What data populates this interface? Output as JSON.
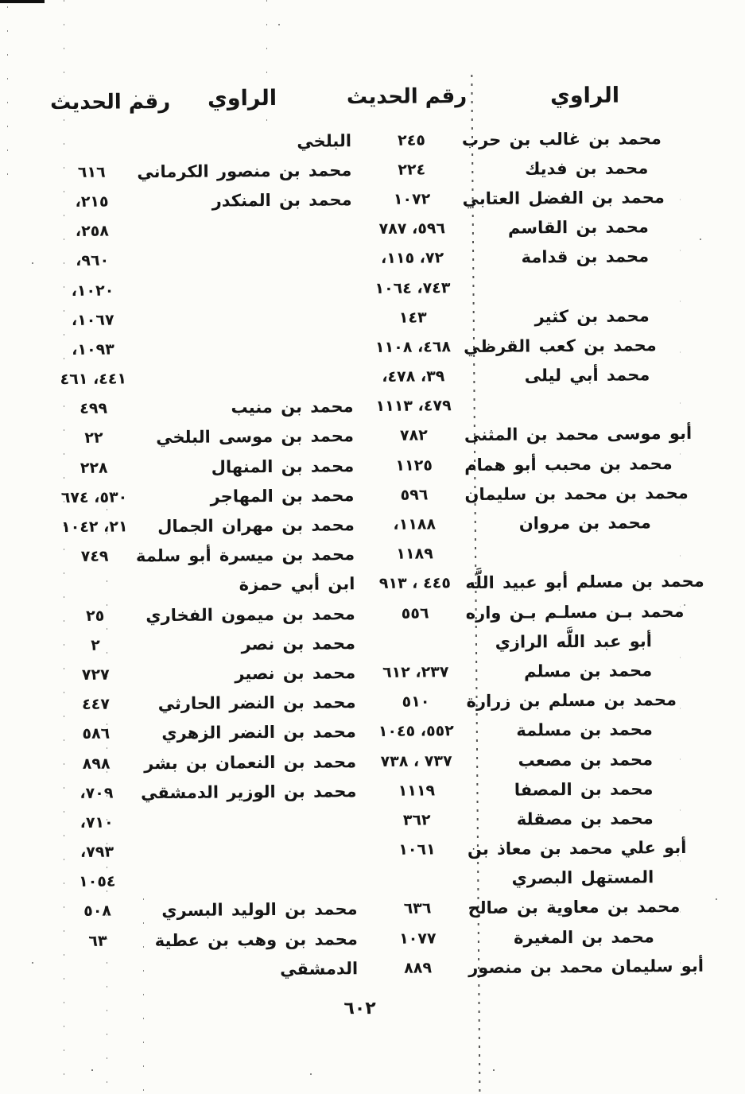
{
  "colors": {
    "ink": "#151515",
    "paper": "#fcfcf9"
  },
  "header": {
    "right": {
      "narrator_label": "الراوي",
      "number_label": "رقم الحديث"
    },
    "left": {
      "narrator_label": "الراوي",
      "number_label": "رقم الحديث"
    }
  },
  "footer": {
    "page_number": "٦٠٢"
  },
  "table": {
    "rows": [
      {
        "right_narrator": "محمد بن غالب بن حرب",
        "right_number": "٢٤٥",
        "left_narrator": "البلخي",
        "left_number": ""
      },
      {
        "right_narrator": "محمد بن فديك",
        "right_number": "٢٢٤",
        "left_narrator": "محمد بن منصور الكرماني",
        "left_number": "٦١٦"
      },
      {
        "right_narrator": "محمد بن الفضل العتابي",
        "right_number": "١٠٧٢",
        "left_narrator": "محمد بن المنكدر",
        "left_number": "٢١٥،"
      },
      {
        "right_narrator": "محمد بن القاسم",
        "right_number": "٥٩٦، ٧٨٧",
        "left_narrator": "",
        "left_number": "٢٥٨،"
      },
      {
        "right_narrator": "محمد بن قدامة",
        "right_number": "٧٢، ١١٥،",
        "left_narrator": "",
        "left_number": "٩٦٠،"
      },
      {
        "right_narrator": "",
        "right_number": "٧٤٣، ١٠٦٤",
        "left_narrator": "",
        "left_number": "١٠٢٠،"
      },
      {
        "right_narrator": "محمد بن كثير",
        "right_number": "١٤٣",
        "left_narrator": "",
        "left_number": "١٠٦٧،"
      },
      {
        "right_narrator": "محمد بن كعب القرظي",
        "right_number": "٤٦٨، ١١٠٨",
        "left_narrator": "",
        "left_number": "١٠٩٣،"
      },
      {
        "right_narrator": "محمد أبي ليلى",
        "right_number": "٣٩، ٤٧٨،",
        "left_narrator": "",
        "left_number": "٤٤١، ٤٦١"
      },
      {
        "right_narrator": "",
        "right_number": "٤٧٩، ١١١٣",
        "left_narrator": "محمد بن منيب",
        "left_number": "٤٩٩"
      },
      {
        "right_narrator": "أبو موسى محمد بن المثنى",
        "right_number": "٧٨٢",
        "left_narrator": "محمد بن موسى البلخي",
        "left_number": "٢٢"
      },
      {
        "right_narrator": "محمد بن محبب أبو همام",
        "right_number": "١١٢٥",
        "left_narrator": "محمد بن المنهال",
        "left_number": "٢٢٨"
      },
      {
        "right_narrator": "محمد بن محمد بن سليمان",
        "right_number": "٥٩٦",
        "left_narrator": "محمد بن المهاجر",
        "left_number": "٥٣٠، ٦٧٤"
      },
      {
        "right_narrator": "محمد بن مروان",
        "right_number": "١١٨٨،",
        "left_narrator": "محمد بن مهران الجمال",
        "left_number": "٢١، ١٠٤٢"
      },
      {
        "right_narrator": "",
        "right_number": "١١٨٩",
        "left_narrator": "محمد بن ميسرة أبو سلمة",
        "left_number": "٧٤٩"
      },
      {
        "right_narrator": "محمد بن مسلم أبو عبيد اللَّه",
        "right_number": "٤٤٥ ، ٩١٣",
        "left_narrator": "ابن أبي حمزة",
        "left_number": ""
      },
      {
        "right_narrator": "محمد بـن مسلـم بـن واره",
        "right_number": "٥٥٦",
        "left_narrator": "محمد بن ميمون الفخاري",
        "left_number": "٢٥"
      },
      {
        "right_narrator": "أبو عبد اللَّه الرازي",
        "right_number": "",
        "left_narrator": "محمد بن نصر",
        "left_number": "٢"
      },
      {
        "right_narrator": "محمد بن مسلم",
        "right_number": "٢٣٧، ٦١٢",
        "left_narrator": "محمد بن نصير",
        "left_number": "٧٢٧"
      },
      {
        "right_narrator": "محمد بن مسلم بن زرارة",
        "right_number": "٥١٠",
        "left_narrator": "محمد بن النضر الحارثي",
        "left_number": "٤٤٧"
      },
      {
        "right_narrator": "محمد بن مسلمة",
        "right_number": "٥٥٢، ١٠٤٥",
        "left_narrator": "محمد بن النضر الزهري",
        "left_number": "٥٨٦"
      },
      {
        "right_narrator": "محمد بن مصعب",
        "right_number": "٧٣٧ ، ٧٣٨",
        "left_narrator": "محمد بن النعمان بن بشر",
        "left_number": "٨٩٨"
      },
      {
        "right_narrator": "محمد بن المصفا",
        "right_number": "١١١٩",
        "left_narrator": "محمد بن الوزير الدمشقي",
        "left_number": "٧٠٩،"
      },
      {
        "right_narrator": "محمد بن مصقلة",
        "right_number": "٣٦٢",
        "left_narrator": "",
        "left_number": "٧١٠،"
      },
      {
        "right_narrator": "أبو علي محمد بن معاذ بن",
        "right_number": "١٠٦١",
        "left_narrator": "",
        "left_number": "٧٩٣،"
      },
      {
        "right_narrator": "المستهل البصري",
        "right_number": "",
        "left_narrator": "",
        "left_number": "١٠٥٤"
      },
      {
        "right_narrator": "محمد بن معاوية بن صالح",
        "right_number": "٦٣٦",
        "left_narrator": "محمد بن الوليد البسري",
        "left_number": "٥٠٨"
      },
      {
        "right_narrator": "محمد بن المغيرة",
        "right_number": "١٠٧٧",
        "left_narrator": "محمد بن وهب بن عطية",
        "left_number": "٦٣"
      },
      {
        "right_narrator": "أبو سليمان محمد بن منصور",
        "right_number": "٨٨٩",
        "left_narrator": "الدمشقي",
        "left_number": ""
      }
    ]
  }
}
